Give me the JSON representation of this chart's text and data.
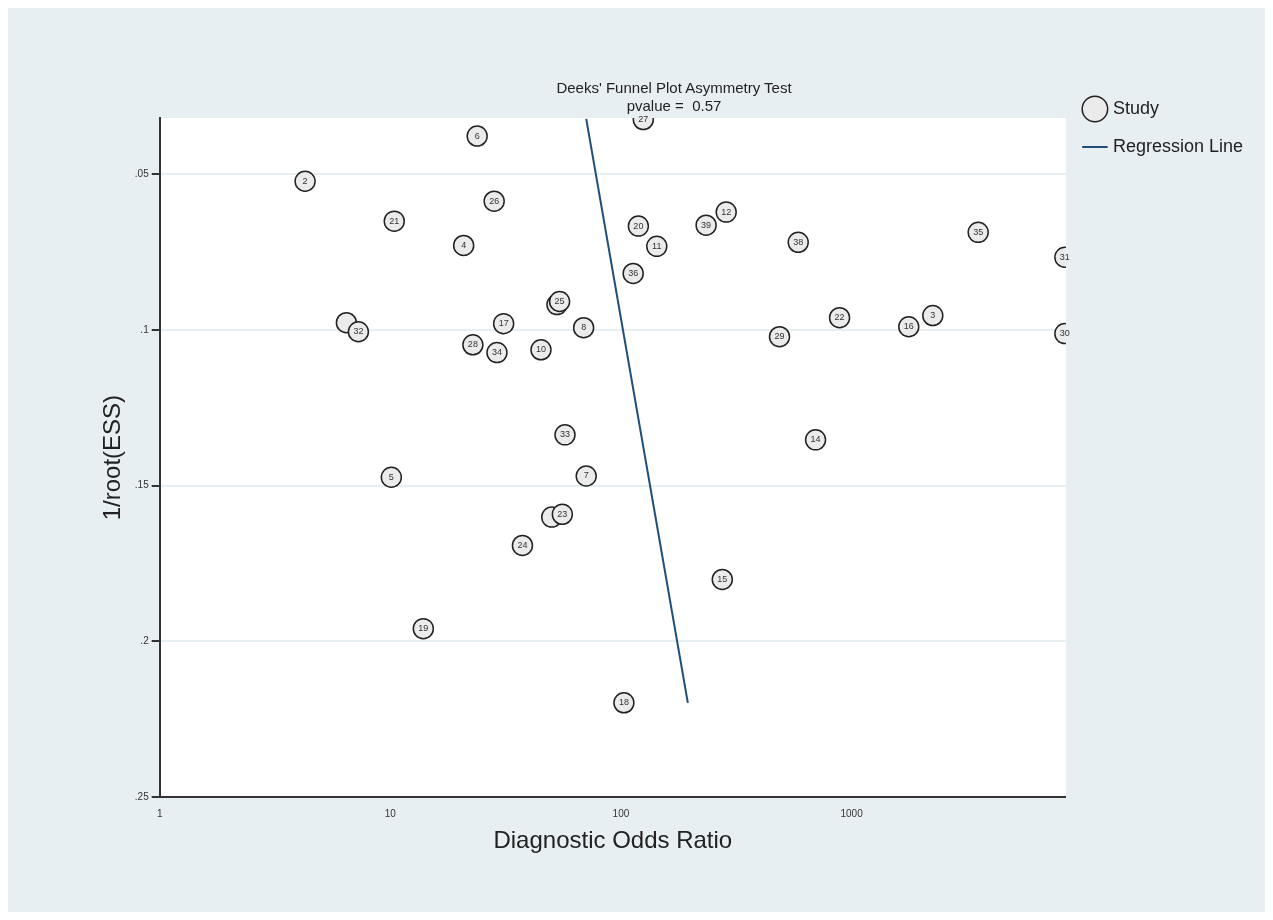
{
  "chart_data": {
    "type": "scatter",
    "title": "Deeks' Funnel Plot Asymmetry Test",
    "subtitle": "pvalue =  0.57",
    "xlabel": "Diagnostic Odds Ratio",
    "ylabel": "1/root(ESS)",
    "log": "x",
    "xlim": [
      1,
      8500
    ],
    "xticks": [
      1,
      10,
      100,
      1000
    ],
    "ylim": [
      0.25,
      0.032
    ],
    "yticks": [
      {
        "value": 0.05,
        "label": ".05"
      },
      {
        "value": 0.1,
        "label": ".1"
      },
      {
        "value": 0.15,
        "label": ".15"
      },
      {
        "value": 0.2,
        "label": ".2"
      },
      {
        "value": 0.25,
        "label": ".25"
      }
    ],
    "grid": "y",
    "legend": "top right",
    "series": [
      {
        "name": "Study",
        "marker": "circle",
        "color": "#ebebeb",
        "x": [
          4.27,
          23.8,
          125,
          28.2,
          10.4,
          20.8,
          119,
          286,
          234,
          143,
          113,
          587,
          3540,
          8410,
          8410,
          887,
          2250,
          1770,
          487,
          52.8,
          54.2,
          68.9,
          31.0,
          22.8,
          29.0,
          45.0,
          6.45,
          7.27,
          57.2,
          698,
          10.1,
          70.7,
          50.1,
          55.7,
          37.4,
          275,
          13.9,
          103
        ],
        "values": [
          0.0523,
          0.0378,
          0.0325,
          0.0587,
          0.0651,
          0.0729,
          0.0667,
          0.0622,
          0.0664,
          0.0732,
          0.0819,
          0.0719,
          0.0687,
          0.0767,
          0.1012,
          0.0961,
          0.0954,
          0.099,
          0.1022,
          0.0919,
          0.0909,
          0.0993,
          0.098,
          0.1048,
          0.1073,
          0.1064,
          0.0977,
          0.1006,
          0.1337,
          0.1353,
          0.1473,
          0.1469,
          0.1601,
          0.1592,
          0.1692,
          0.1801,
          0.1959,
          0.2197
        ]
      },
      {
        "name": "Regression Line",
        "type": "line",
        "marker": "none",
        "color": "#1f4e79",
        "x": [
          70.7,
          195
        ],
        "values": [
          0.0323,
          0.2197
        ]
      }
    ],
    "annotations": [
      {
        "text": "2",
        "x": 4.27,
        "y": 0.0523
      },
      {
        "text": "6",
        "x": 23.8,
        "y": 0.0378
      },
      {
        "text": "27",
        "x": 125,
        "y": 0.0325
      },
      {
        "text": "26",
        "x": 28.2,
        "y": 0.0587
      },
      {
        "text": "21",
        "x": 10.4,
        "y": 0.0651
      },
      {
        "text": "4",
        "x": 20.8,
        "y": 0.0729
      },
      {
        "text": "20",
        "x": 119,
        "y": 0.0667
      },
      {
        "text": "12",
        "x": 286,
        "y": 0.0622
      },
      {
        "text": "39",
        "x": 234,
        "y": 0.0664
      },
      {
        "text": "11",
        "x": 143,
        "y": 0.0732
      },
      {
        "text": "36",
        "x": 113,
        "y": 0.0819
      },
      {
        "text": "38",
        "x": 587,
        "y": 0.0719
      },
      {
        "text": "35",
        "x": 3540,
        "y": 0.0687
      },
      {
        "text": "31",
        "x": 8410,
        "y": 0.0767
      },
      {
        "text": "30",
        "x": 8410,
        "y": 0.1012
      },
      {
        "text": "22",
        "x": 887,
        "y": 0.0961
      },
      {
        "text": "3",
        "x": 2250,
        "y": 0.0954
      },
      {
        "text": "16",
        "x": 1770,
        "y": 0.099
      },
      {
        "text": "29",
        "x": 487,
        "y": 0.1022
      },
      {
        "text": "25",
        "x": 54.2,
        "y": 0.0909
      },
      {
        "text": "8",
        "x": 68.9,
        "y": 0.0993
      },
      {
        "text": "17",
        "x": 31.0,
        "y": 0.098
      },
      {
        "text": "28",
        "x": 22.8,
        "y": 0.1048
      },
      {
        "text": "34",
        "x": 29.0,
        "y": 0.1073
      },
      {
        "text": "10",
        "x": 45.0,
        "y": 0.1064
      },
      {
        "text": "32",
        "x": 7.27,
        "y": 0.1006
      },
      {
        "text": "33",
        "x": 57.2,
        "y": 0.1337
      },
      {
        "text": "14",
        "x": 698,
        "y": 0.1353
      },
      {
        "text": "5",
        "x": 10.1,
        "y": 0.1473
      },
      {
        "text": "7",
        "x": 70.7,
        "y": 0.1469
      },
      {
        "text": "23",
        "x": 55.7,
        "y": 0.1592
      },
      {
        "text": "24",
        "x": 37.4,
        "y": 0.1692
      },
      {
        "text": "15",
        "x": 275,
        "y": 0.1801
      },
      {
        "text": "19",
        "x": 13.9,
        "y": 0.1959
      },
      {
        "text": "18",
        "x": 103,
        "y": 0.2197
      }
    ]
  }
}
